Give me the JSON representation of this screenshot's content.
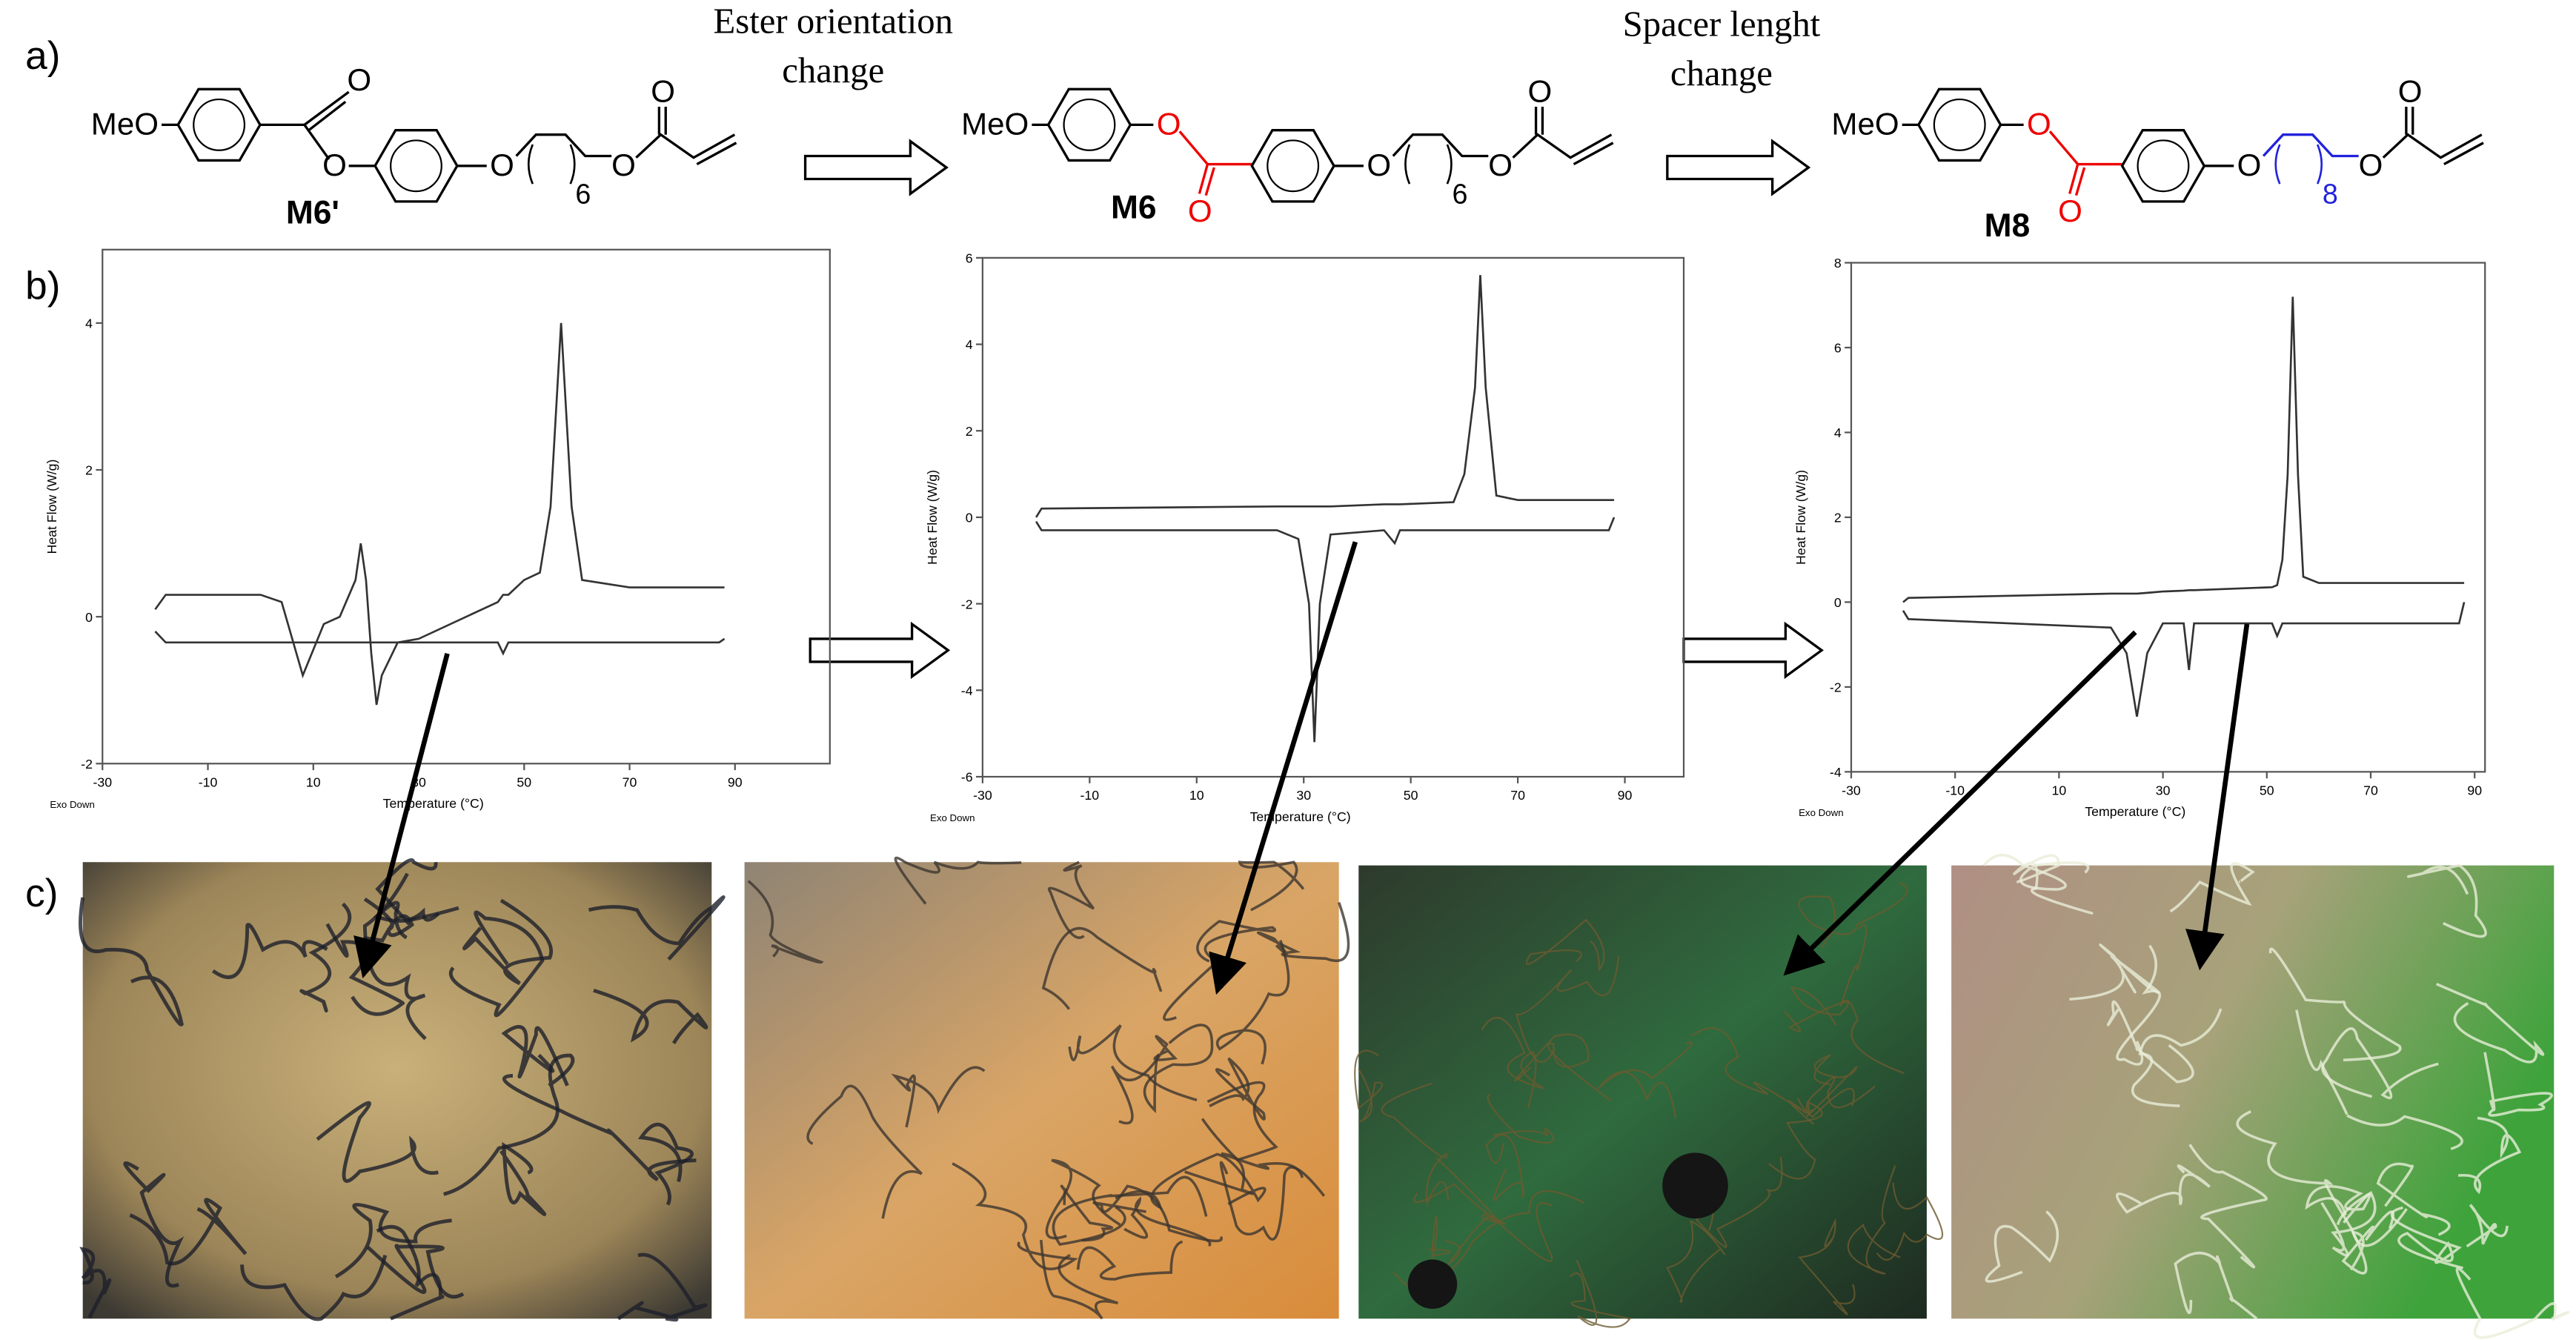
{
  "panel_labels": [
    "a)",
    "b)",
    "c)"
  ],
  "transitions": [
    {
      "lines": [
        "Ester orientation",
        "change"
      ]
    },
    {
      "lines": [
        "Spacer lenght",
        "change"
      ]
    }
  ],
  "molecules": [
    {
      "name": "M6'",
      "labels": [
        "MeO",
        "O",
        "O",
        "O",
        "O",
        "O"
      ],
      "spacer": "6"
    },
    {
      "name": "M6",
      "labels": [
        "MeO",
        "O",
        "O",
        "O",
        "O",
        "O"
      ],
      "spacer": "6"
    },
    {
      "name": "M8",
      "labels": [
        "MeO",
        "O",
        "O",
        "O",
        "O",
        "O"
      ],
      "spacer": "8"
    }
  ],
  "chart_data": [
    {
      "type": "line",
      "xlabel": "Temperature (°C)",
      "ylabel": "Heat Flow (W/g)",
      "note": "Exo Down",
      "xlim": [
        -30,
        108
      ],
      "ylim": [
        -2,
        5
      ],
      "xticks": [
        -30,
        -10,
        10,
        30,
        50,
        70,
        90
      ],
      "yticks": [
        -2,
        0,
        2,
        4
      ],
      "x": [
        -20,
        -18,
        0,
        4,
        8,
        12,
        15,
        18,
        19,
        20,
        21,
        22,
        23,
        26,
        30,
        45,
        46,
        47,
        50,
        53,
        55,
        57,
        59,
        61,
        70,
        87,
        88
      ],
      "series": [
        {
          "color": "#333333",
          "values": [
            -0.2,
            -0.35,
            -0.35,
            -0.35,
            -0.35,
            -0.35,
            -0.35,
            -0.35,
            -0.35,
            -0.35,
            -0.35,
            -0.35,
            -0.35,
            -0.35,
            -0.35,
            -0.35,
            -0.5,
            -0.35,
            -0.35,
            -0.35,
            -0.35,
            -0.35,
            -0.35,
            -0.35,
            -0.35,
            -0.35,
            -0.3
          ]
        },
        {
          "color": "#333333",
          "values": [
            0.1,
            0.3,
            0.3,
            0.2,
            -0.8,
            -0.1,
            0.0,
            0.5,
            1.0,
            0.5,
            -0.5,
            -1.2,
            -0.8,
            -0.35,
            -0.3,
            0.2,
            0.3,
            0.3,
            0.5,
            0.6,
            1.5,
            4.0,
            1.5,
            0.5,
            0.4,
            0.4,
            0.4
          ]
        }
      ]
    },
    {
      "type": "line",
      "xlabel": "Temperature (°C)",
      "ylabel": "Heat Flow (W/g)",
      "note": "Exo Down",
      "xlim": [
        -30,
        101
      ],
      "ylim": [
        -6,
        6
      ],
      "xticks": [
        -30,
        -10,
        10,
        30,
        50,
        70,
        90
      ],
      "yticks": [
        -6,
        -4,
        -2,
        0,
        2,
        4,
        6
      ],
      "x": [
        -20,
        -19,
        25,
        29,
        31,
        32,
        33,
        35,
        45,
        47,
        48,
        58,
        60,
        62,
        63,
        64,
        66,
        70,
        87,
        88
      ],
      "series": [
        {
          "color": "#333333",
          "values": [
            0,
            0.2,
            0.25,
            0.25,
            0.25,
            0.25,
            0.25,
            0.25,
            0.3,
            0.3,
            0.3,
            0.35,
            1,
            3,
            5.6,
            3,
            0.5,
            0.4,
            0.4,
            0.4
          ]
        },
        {
          "color": "#333333",
          "values": [
            -0.1,
            -0.3,
            -0.3,
            -0.5,
            -2,
            -5.2,
            -2,
            -0.4,
            -0.3,
            -0.6,
            -0.3,
            -0.3,
            -0.3,
            -0.3,
            -0.3,
            -0.3,
            -0.3,
            -0.3,
            -0.3,
            0
          ]
        }
      ]
    },
    {
      "type": "line",
      "xlabel": "Temperature (°C)",
      "ylabel": "Heat Flow (W/g)",
      "note": "Exo Down",
      "xlim": [
        -30,
        92
      ],
      "ylim": [
        -4,
        8
      ],
      "xticks": [
        -30,
        -10,
        10,
        30,
        50,
        70,
        90
      ],
      "yticks": [
        -4,
        -2,
        0,
        2,
        4,
        6,
        8
      ],
      "x": [
        -20,
        -19,
        20,
        23,
        25,
        27,
        30,
        34,
        35,
        36,
        51,
        52,
        53,
        54,
        55,
        56,
        57,
        60,
        87,
        88
      ],
      "series": [
        {
          "color": "#333333",
          "values": [
            0,
            0.1,
            0.2,
            0.2,
            0.2,
            0.22,
            0.25,
            0.27,
            0.28,
            0.28,
            0.35,
            0.4,
            1,
            3,
            7.2,
            3,
            0.6,
            0.45,
            0.45,
            0.45
          ]
        },
        {
          "color": "#333333",
          "values": [
            -0.2,
            -0.4,
            -0.6,
            -1.2,
            -2.7,
            -1.2,
            -0.5,
            -0.5,
            -1.6,
            -0.5,
            -0.5,
            -0.8,
            -0.5,
            -0.5,
            -0.5,
            -0.5,
            -0.5,
            -0.5,
            -0.5,
            0
          ]
        }
      ]
    }
  ]
}
